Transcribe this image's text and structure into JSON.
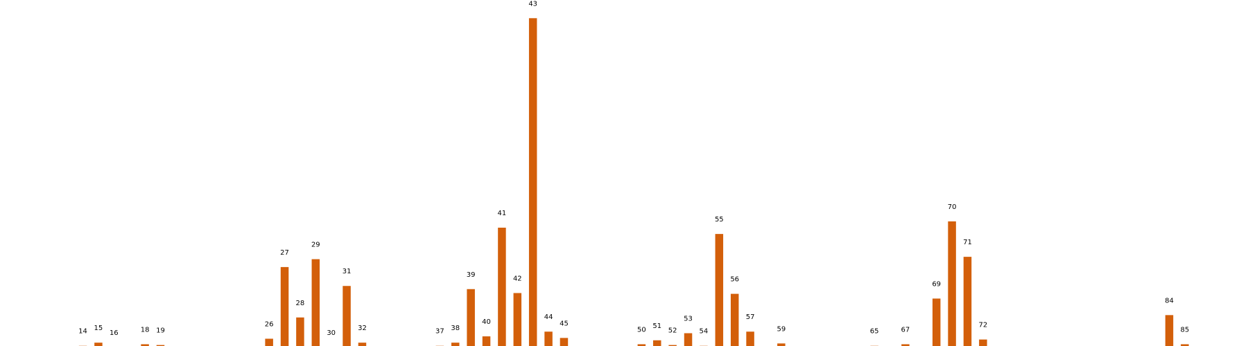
{
  "chart_data": {
    "type": "bar",
    "title": "",
    "xlabel": "",
    "ylabel": "",
    "bar_color": "#d35f0a",
    "ylim": [
      0,
      21
    ],
    "x_range": [
      10,
      88
    ],
    "grid": false,
    "axes_visible": false,
    "bars": [
      {
        "label": "14",
        "x": 14,
        "value": 0.1
      },
      {
        "label": "15",
        "x": 15,
        "value": 0.3
      },
      {
        "label": "16",
        "x": 16,
        "value": 0
      },
      {
        "label": "18",
        "x": 18,
        "value": 0.2
      },
      {
        "label": "19",
        "x": 19,
        "value": 0.15
      },
      {
        "label": "26",
        "x": 26,
        "value": 0.55
      },
      {
        "label": "27",
        "x": 27,
        "value": 5.1
      },
      {
        "label": "28",
        "x": 28,
        "value": 1.9
      },
      {
        "label": "29",
        "x": 29,
        "value": 5.6
      },
      {
        "label": "30",
        "x": 30,
        "value": 0
      },
      {
        "label": "31",
        "x": 31,
        "value": 3.9
      },
      {
        "label": "32",
        "x": 32,
        "value": 0.3
      },
      {
        "label": "37",
        "x": 37,
        "value": 0.1
      },
      {
        "label": "38",
        "x": 38,
        "value": 0.3
      },
      {
        "label": "39",
        "x": 39,
        "value": 3.7
      },
      {
        "label": "40",
        "x": 40,
        "value": 0.7
      },
      {
        "label": "41",
        "x": 41,
        "value": 7.6
      },
      {
        "label": "42",
        "x": 42,
        "value": 3.45
      },
      {
        "label": "43",
        "x": 43,
        "value": 20.9
      },
      {
        "label": "44",
        "x": 44,
        "value": 1.0
      },
      {
        "label": "45",
        "x": 45,
        "value": 0.6
      },
      {
        "label": "50",
        "x": 50,
        "value": 0.2
      },
      {
        "label": "51",
        "x": 51,
        "value": 0.45
      },
      {
        "label": "52",
        "x": 52,
        "value": 0.15
      },
      {
        "label": "53",
        "x": 53,
        "value": 0.9
      },
      {
        "label": "54",
        "x": 54,
        "value": 0.1
      },
      {
        "label": "55",
        "x": 55,
        "value": 7.2
      },
      {
        "label": "56",
        "x": 56,
        "value": 3.4
      },
      {
        "label": "57",
        "x": 57,
        "value": 1.0
      },
      {
        "label": "59",
        "x": 59,
        "value": 0.25
      },
      {
        "label": "65",
        "x": 65,
        "value": 0.1
      },
      {
        "label": "67",
        "x": 67,
        "value": 0.2
      },
      {
        "label": "69",
        "x": 69,
        "value": 3.1
      },
      {
        "label": "70",
        "x": 70,
        "value": 8.0
      },
      {
        "label": "71",
        "x": 71,
        "value": 5.75
      },
      {
        "label": "72",
        "x": 72,
        "value": 0.5
      },
      {
        "label": "84",
        "x": 84,
        "value": 2.05
      },
      {
        "label": "85",
        "x": 85,
        "value": 0.2
      }
    ]
  }
}
